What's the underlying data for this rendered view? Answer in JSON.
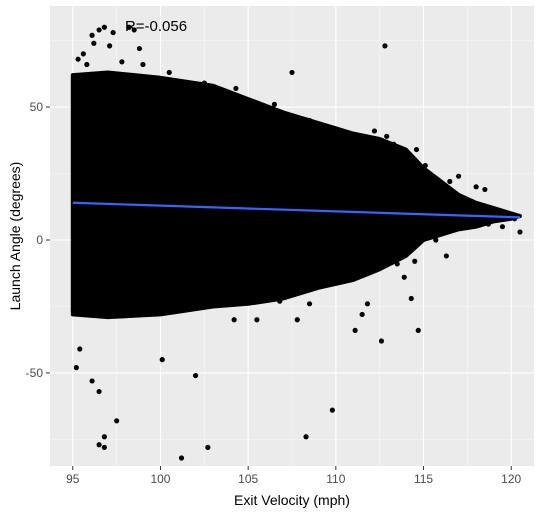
{
  "chart_data": {
    "type": "scatter",
    "title": "",
    "xlabel": "Exit Velocity (mph)",
    "ylabel": "Launch Angle (degrees)",
    "annotation": "R=-0.056",
    "xlim": [
      93.7,
      121.3
    ],
    "ylim": [
      -85,
      88
    ],
    "xticks": [
      95,
      100,
      105,
      110,
      115,
      120
    ],
    "yticks": [
      -50,
      0,
      50
    ],
    "grid": true,
    "background": "#ebebeb",
    "point_color": "#000000",
    "trend_color": "#3366ff",
    "trend_line": {
      "x": [
        95,
        120.5
      ],
      "y": [
        14.0,
        8.5
      ]
    },
    "band_upper": [
      [
        95,
        62
      ],
      [
        97,
        63
      ],
      [
        100,
        61
      ],
      [
        103,
        58
      ],
      [
        105,
        53
      ],
      [
        107,
        48
      ],
      [
        109,
        44
      ],
      [
        111,
        40
      ],
      [
        112.5,
        38
      ],
      [
        114,
        34
      ],
      [
        115,
        27
      ],
      [
        116,
        22
      ],
      [
        117,
        17
      ],
      [
        118,
        14
      ],
      [
        119,
        12
      ],
      [
        120,
        10
      ],
      [
        120.5,
        9
      ]
    ],
    "band_lower": [
      [
        95,
        -28
      ],
      [
        97,
        -29
      ],
      [
        100,
        -28
      ],
      [
        103,
        -25
      ],
      [
        105,
        -24
      ],
      [
        107,
        -22
      ],
      [
        109,
        -18
      ],
      [
        111,
        -15
      ],
      [
        112.5,
        -11
      ],
      [
        114,
        -6
      ],
      [
        115,
        0
      ],
      [
        116,
        2
      ],
      [
        117,
        4
      ],
      [
        118,
        5
      ],
      [
        119,
        7
      ],
      [
        120,
        8
      ],
      [
        120.5,
        9
      ]
    ],
    "outliers": [
      [
        96.8,
        -78
      ],
      [
        96.5,
        -77
      ],
      [
        96.8,
        -74
      ],
      [
        97.5,
        -68
      ],
      [
        101.2,
        -82
      ],
      [
        102.7,
        -78
      ],
      [
        102.0,
        -51
      ],
      [
        108.3,
        -74
      ],
      [
        109.8,
        -64
      ],
      [
        96.1,
        -53
      ],
      [
        96.5,
        -57
      ],
      [
        95.2,
        -48
      ],
      [
        100.1,
        -45
      ],
      [
        95.4,
        -41
      ],
      [
        98.2,
        80
      ],
      [
        98.5,
        79
      ],
      [
        96.8,
        80
      ],
      [
        96.5,
        79
      ],
      [
        97.3,
        78
      ],
      [
        96.1,
        77
      ],
      [
        112.8,
        73
      ],
      [
        107.5,
        63
      ],
      [
        95.6,
        70
      ],
      [
        97.1,
        73
      ],
      [
        98.8,
        72
      ],
      [
        96.2,
        74
      ],
      [
        95.3,
        68
      ],
      [
        120.5,
        3
      ],
      [
        119.5,
        5
      ],
      [
        118.2,
        9
      ],
      [
        118.8,
        8
      ],
      [
        116.8,
        15
      ],
      [
        117.5,
        11
      ],
      [
        118.0,
        20
      ],
      [
        118.5,
        19
      ],
      [
        116.5,
        22
      ],
      [
        117.0,
        24
      ],
      [
        114.6,
        34
      ],
      [
        113.3,
        36
      ],
      [
        112.9,
        39
      ],
      [
        112.2,
        41
      ],
      [
        115.3,
        24
      ],
      [
        115.1,
        28
      ],
      [
        114.8,
        21
      ],
      [
        116.2,
        20
      ],
      [
        117.2,
        10
      ],
      [
        119.7,
        10
      ],
      [
        120.2,
        8
      ],
      [
        118.7,
        6
      ],
      [
        116.1,
        3
      ],
      [
        115.7,
        0
      ],
      [
        114.5,
        -8
      ],
      [
        113.5,
        -9
      ],
      [
        114.3,
        -22
      ],
      [
        114.7,
        -34
      ],
      [
        112.6,
        -38
      ],
      [
        111.5,
        -28
      ],
      [
        111.1,
        -34
      ],
      [
        108.5,
        -24
      ],
      [
        107.8,
        -30
      ],
      [
        106.8,
        -23
      ],
      [
        105.5,
        -30
      ],
      [
        104.2,
        -30
      ],
      [
        116.3,
        -6
      ],
      [
        115.9,
        6
      ],
      [
        113.1,
        -2
      ],
      [
        113.9,
        -14
      ],
      [
        111.8,
        -24
      ],
      [
        109.5,
        36
      ],
      [
        110.5,
        40
      ],
      [
        111.2,
        35
      ],
      [
        108.5,
        45
      ],
      [
        106.5,
        51
      ],
      [
        104.3,
        57
      ],
      [
        102.5,
        59
      ],
      [
        100.5,
        63
      ],
      [
        99.0,
        66
      ],
      [
        97.8,
        67
      ],
      [
        95.8,
        66
      ]
    ]
  }
}
